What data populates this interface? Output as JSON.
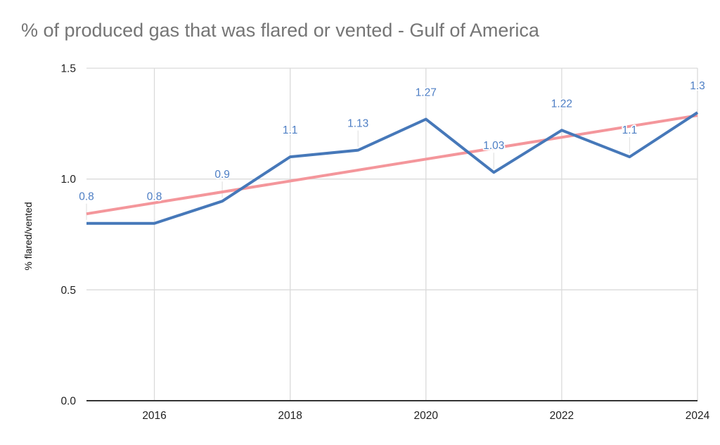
{
  "chart_data": {
    "type": "line",
    "title": "% of produced gas that was flared or vented - Gulf of America",
    "ylabel": "% flared/vented",
    "xlabel": "",
    "x": [
      2015,
      2016,
      2017,
      2018,
      2019,
      2020,
      2021,
      2022,
      2023,
      2024
    ],
    "series": [
      {
        "name": "% flared/vented",
        "type": "line",
        "color": "#4678b9",
        "line_width": 4,
        "values": [
          0.8,
          0.8,
          0.9,
          1.1,
          1.13,
          1.27,
          1.03,
          1.22,
          1.1,
          1.3
        ],
        "point_labels": [
          "0.8",
          "0.8",
          "0.9",
          "1.1",
          "1.13",
          "1.27",
          "1.03",
          "1.22",
          "1.1",
          "1.3"
        ],
        "label_color": "#4d7ec4"
      },
      {
        "name": "linear trendline",
        "type": "trendline",
        "color": "#f4969b",
        "line_width": 4,
        "start_x": 2015,
        "start_y": 0.843,
        "end_x": 2024,
        "end_y": 1.287
      }
    ],
    "xticks": [
      "2016",
      "2018",
      "2020",
      "2022",
      "2024"
    ],
    "xtick_values": [
      2016,
      2018,
      2020,
      2022,
      2024
    ],
    "yticks": [
      "0.0",
      "0.5",
      "1.0",
      "1.5"
    ],
    "ytick_values": [
      0,
      0.5,
      1,
      1.5
    ],
    "xlim": [
      2015,
      2024
    ],
    "ylim": [
      0,
      1.5
    ],
    "grid": true,
    "legend": "none",
    "style": {
      "gridline_color": "#dadada",
      "axis_color": "#333333",
      "tick_text_color": "#1f1f1f",
      "stem_color": "#e4e4e4",
      "title_color": "#757575",
      "background": "#ffffff",
      "tick_font_size": 15.5,
      "label_font_size": 15.5
    }
  }
}
